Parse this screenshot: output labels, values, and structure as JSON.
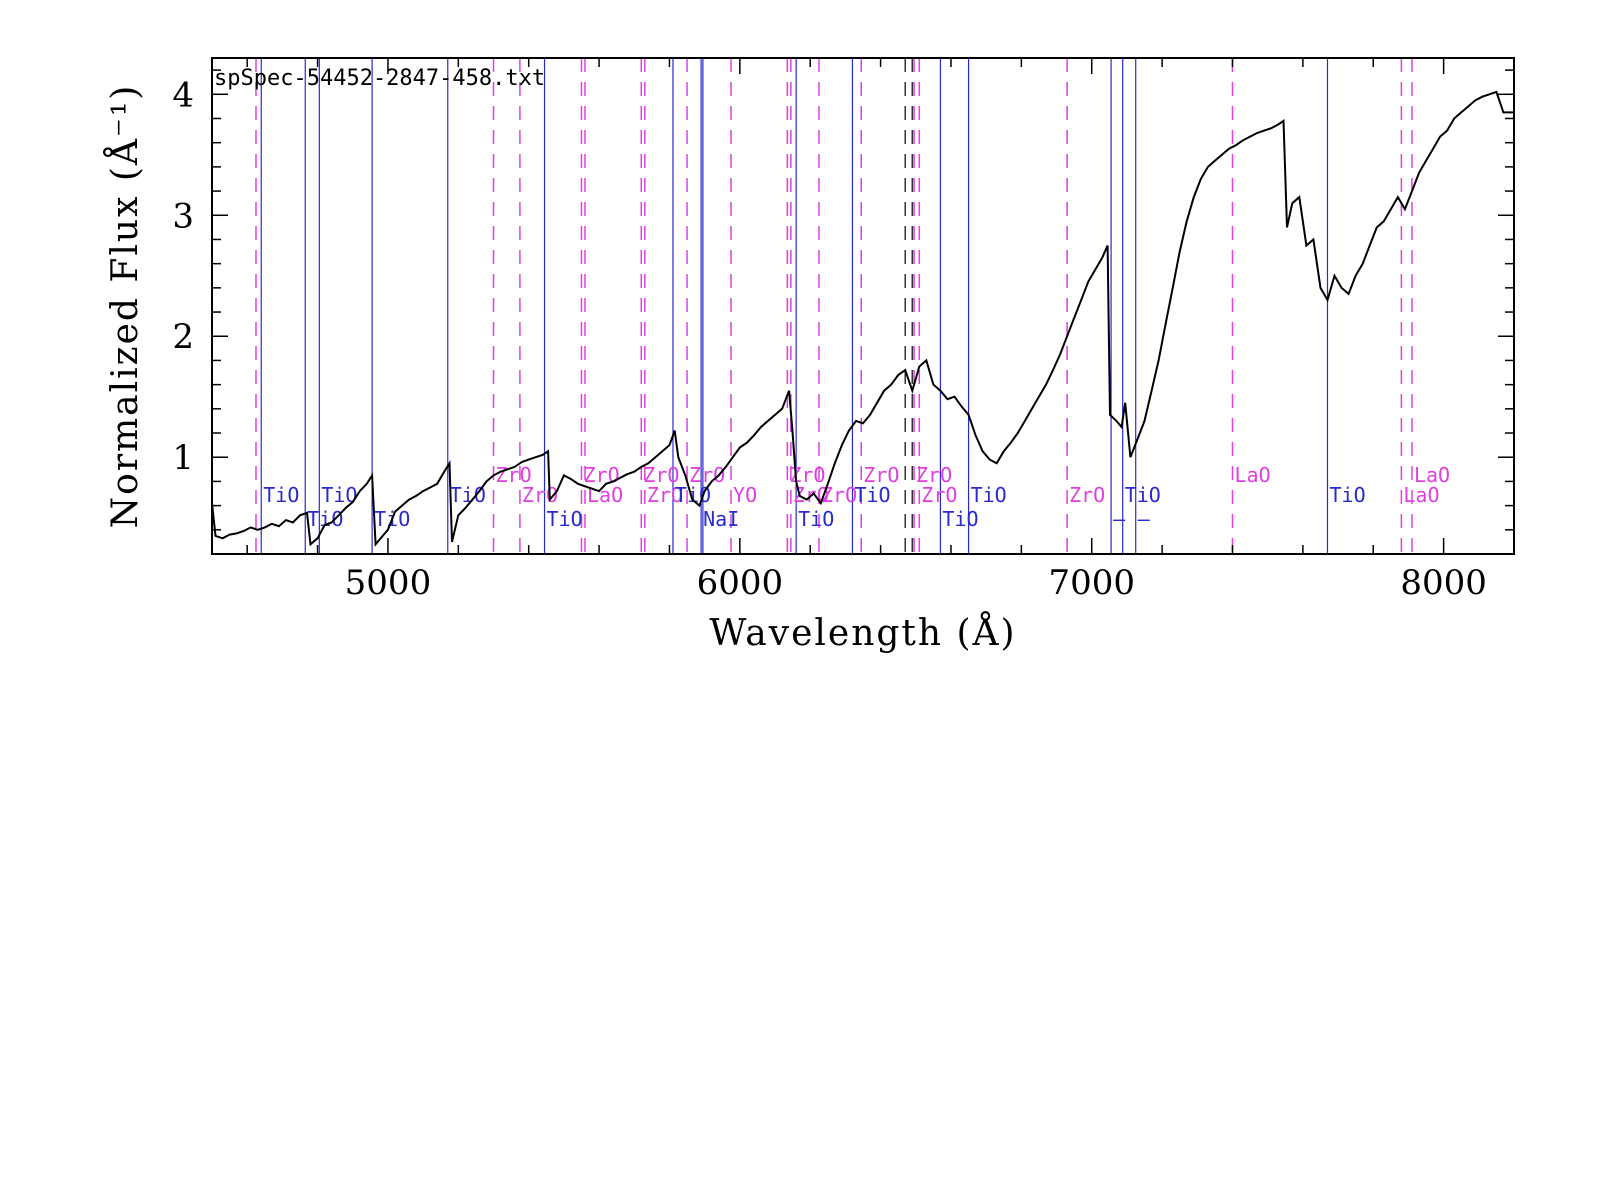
{
  "chart_data": {
    "type": "line",
    "file_label": "spSpec-54452-2847-458.txt",
    "xlabel": "Wavelength (Å)",
    "ylabel": "Normalized Flux  (Å⁻¹)",
    "xlim": [
      4500,
      8200
    ],
    "ylim": [
      0.2,
      4.3
    ],
    "xticks": [
      5000,
      6000,
      7000,
      8000
    ],
    "yticks": [
      1,
      2,
      3,
      4
    ],
    "grid": false,
    "colors": {
      "spectrum": "#000000",
      "blue_lines": "#2a2ad0",
      "magenta_lines": "#e040e0",
      "dark_dashed": "#333333"
    },
    "series": [
      {
        "values": [
          [
            4500,
            0.62
          ],
          [
            4510,
            0.35
          ],
          [
            4530,
            0.33
          ],
          [
            4550,
            0.36
          ],
          [
            4570,
            0.37
          ],
          [
            4590,
            0.39
          ],
          [
            4610,
            0.42
          ],
          [
            4630,
            0.4
          ],
          [
            4650,
            0.42
          ],
          [
            4670,
            0.45
          ],
          [
            4690,
            0.43
          ],
          [
            4710,
            0.48
          ],
          [
            4730,
            0.46
          ],
          [
            4750,
            0.52
          ],
          [
            4770,
            0.54
          ],
          [
            4780,
            0.28
          ],
          [
            4800,
            0.33
          ],
          [
            4820,
            0.44
          ],
          [
            4840,
            0.46
          ],
          [
            4860,
            0.52
          ],
          [
            4880,
            0.58
          ],
          [
            4900,
            0.63
          ],
          [
            4920,
            0.72
          ],
          [
            4940,
            0.78
          ],
          [
            4955,
            0.85
          ],
          [
            4965,
            0.28
          ],
          [
            4985,
            0.35
          ],
          [
            5000,
            0.4
          ],
          [
            5020,
            0.55
          ],
          [
            5040,
            0.6
          ],
          [
            5060,
            0.65
          ],
          [
            5080,
            0.68
          ],
          [
            5100,
            0.72
          ],
          [
            5120,
            0.75
          ],
          [
            5140,
            0.78
          ],
          [
            5160,
            0.88
          ],
          [
            5175,
            0.95
          ],
          [
            5182,
            0.3
          ],
          [
            5200,
            0.52
          ],
          [
            5220,
            0.58
          ],
          [
            5240,
            0.65
          ],
          [
            5260,
            0.72
          ],
          [
            5280,
            0.8
          ],
          [
            5300,
            0.85
          ],
          [
            5320,
            0.88
          ],
          [
            5340,
            0.9
          ],
          [
            5360,
            0.92
          ],
          [
            5380,
            0.96
          ],
          [
            5400,
            0.98
          ],
          [
            5420,
            1.0
          ],
          [
            5440,
            1.02
          ],
          [
            5455,
            1.05
          ],
          [
            5460,
            0.65
          ],
          [
            5480,
            0.72
          ],
          [
            5500,
            0.85
          ],
          [
            5520,
            0.82
          ],
          [
            5540,
            0.78
          ],
          [
            5560,
            0.76
          ],
          [
            5580,
            0.74
          ],
          [
            5600,
            0.72
          ],
          [
            5620,
            0.78
          ],
          [
            5640,
            0.8
          ],
          [
            5660,
            0.83
          ],
          [
            5680,
            0.86
          ],
          [
            5700,
            0.88
          ],
          [
            5720,
            0.92
          ],
          [
            5740,
            0.95
          ],
          [
            5760,
            1.0
          ],
          [
            5780,
            1.05
          ],
          [
            5800,
            1.1
          ],
          [
            5815,
            1.22
          ],
          [
            5825,
            1.0
          ],
          [
            5845,
            0.85
          ],
          [
            5865,
            0.65
          ],
          [
            5885,
            0.6
          ],
          [
            5900,
            0.72
          ],
          [
            5920,
            0.8
          ],
          [
            5940,
            0.85
          ],
          [
            5960,
            0.92
          ],
          [
            5980,
            1.0
          ],
          [
            6000,
            1.08
          ],
          [
            6020,
            1.12
          ],
          [
            6040,
            1.18
          ],
          [
            6060,
            1.25
          ],
          [
            6080,
            1.3
          ],
          [
            6100,
            1.35
          ],
          [
            6120,
            1.4
          ],
          [
            6140,
            1.55
          ],
          [
            6150,
            1.2
          ],
          [
            6160,
            0.8
          ],
          [
            6170,
            0.68
          ],
          [
            6190,
            0.65
          ],
          [
            6210,
            0.7
          ],
          [
            6230,
            0.62
          ],
          [
            6250,
            0.78
          ],
          [
            6270,
            0.95
          ],
          [
            6290,
            1.1
          ],
          [
            6310,
            1.22
          ],
          [
            6330,
            1.3
          ],
          [
            6350,
            1.28
          ],
          [
            6370,
            1.35
          ],
          [
            6390,
            1.45
          ],
          [
            6410,
            1.55
          ],
          [
            6430,
            1.6
          ],
          [
            6450,
            1.68
          ],
          [
            6470,
            1.72
          ],
          [
            6490,
            1.55
          ],
          [
            6510,
            1.75
          ],
          [
            6530,
            1.8
          ],
          [
            6550,
            1.6
          ],
          [
            6570,
            1.55
          ],
          [
            6590,
            1.48
          ],
          [
            6610,
            1.5
          ],
          [
            6630,
            1.42
          ],
          [
            6650,
            1.35
          ],
          [
            6670,
            1.18
          ],
          [
            6690,
            1.05
          ],
          [
            6710,
            0.98
          ],
          [
            6730,
            0.95
          ],
          [
            6750,
            1.05
          ],
          [
            6770,
            1.12
          ],
          [
            6790,
            1.2
          ],
          [
            6810,
            1.3
          ],
          [
            6830,
            1.4
          ],
          [
            6850,
            1.5
          ],
          [
            6870,
            1.6
          ],
          [
            6890,
            1.72
          ],
          [
            6910,
            1.85
          ],
          [
            6930,
            2.0
          ],
          [
            6950,
            2.15
          ],
          [
            6970,
            2.3
          ],
          [
            6990,
            2.45
          ],
          [
            7010,
            2.55
          ],
          [
            7030,
            2.65
          ],
          [
            7045,
            2.75
          ],
          [
            7052,
            1.35
          ],
          [
            7070,
            1.3
          ],
          [
            7085,
            1.25
          ],
          [
            7095,
            1.45
          ],
          [
            7110,
            1.0
          ],
          [
            7130,
            1.15
          ],
          [
            7150,
            1.3
          ],
          [
            7170,
            1.55
          ],
          [
            7190,
            1.8
          ],
          [
            7210,
            2.1
          ],
          [
            7230,
            2.4
          ],
          [
            7250,
            2.7
          ],
          [
            7270,
            2.95
          ],
          [
            7290,
            3.15
          ],
          [
            7310,
            3.3
          ],
          [
            7330,
            3.4
          ],
          [
            7350,
            3.45
          ],
          [
            7370,
            3.5
          ],
          [
            7390,
            3.55
          ],
          [
            7410,
            3.58
          ],
          [
            7430,
            3.62
          ],
          [
            7450,
            3.65
          ],
          [
            7470,
            3.68
          ],
          [
            7490,
            3.7
          ],
          [
            7510,
            3.72
          ],
          [
            7530,
            3.75
          ],
          [
            7545,
            3.78
          ],
          [
            7555,
            2.9
          ],
          [
            7570,
            3.1
          ],
          [
            7590,
            3.15
          ],
          [
            7610,
            2.75
          ],
          [
            7630,
            2.8
          ],
          [
            7650,
            2.4
          ],
          [
            7670,
            2.3
          ],
          [
            7690,
            2.5
          ],
          [
            7710,
            2.4
          ],
          [
            7730,
            2.35
          ],
          [
            7750,
            2.5
          ],
          [
            7770,
            2.6
          ],
          [
            7790,
            2.75
          ],
          [
            7810,
            2.9
          ],
          [
            7830,
            2.95
          ],
          [
            7850,
            3.05
          ],
          [
            7870,
            3.15
          ],
          [
            7890,
            3.05
          ],
          [
            7910,
            3.2
          ],
          [
            7930,
            3.35
          ],
          [
            7950,
            3.45
          ],
          [
            7970,
            3.55
          ],
          [
            7990,
            3.65
          ],
          [
            8010,
            3.7
          ],
          [
            8030,
            3.8
          ],
          [
            8050,
            3.85
          ],
          [
            8070,
            3.9
          ],
          [
            8090,
            3.95
          ],
          [
            8110,
            3.98
          ],
          [
            8130,
            4.0
          ],
          [
            8150,
            4.02
          ],
          [
            8170,
            3.85
          ],
          [
            8200,
            3.85
          ]
        ]
      }
    ],
    "blue_lines": [
      {
        "x": 4640,
        "label": "TiO",
        "row": 1
      },
      {
        "x": 4765,
        "label": "TiO",
        "row": 2
      },
      {
        "x": 4805,
        "label": "TiO",
        "row": 1
      },
      {
        "x": 4955,
        "label": "TiO",
        "row": 2
      },
      {
        "x": 5170,
        "label": "TiO",
        "row": 1
      },
      {
        "x": 5445,
        "label": "TiO",
        "row": 2
      },
      {
        "x": 5810,
        "label": "TiO",
        "row": 1
      },
      {
        "x": 5890,
        "label": "NaI",
        "row": 2
      },
      {
        "x": 5895,
        "label": "",
        "row": 0
      },
      {
        "x": 6160,
        "label": "TiO",
        "row": 2
      },
      {
        "x": 6320,
        "label": "TiO",
        "row": 1
      },
      {
        "x": 6570,
        "label": "TiO",
        "row": 2
      },
      {
        "x": 6650,
        "label": "TiO",
        "row": 1
      },
      {
        "x": 7055,
        "label": "–",
        "row": 2
      },
      {
        "x": 7088,
        "label": "TiO",
        "row": 1
      },
      {
        "x": 7125,
        "label": "–",
        "row": 2
      },
      {
        "x": 7670,
        "label": "TiO",
        "row": 1
      }
    ],
    "magenta_lines": [
      {
        "x": 4625,
        "label": "",
        "row": 0
      },
      {
        "x": 5300,
        "label": "ZrO",
        "row": 0
      },
      {
        "x": 5375,
        "label": "ZrO",
        "row": 1
      },
      {
        "x": 5550,
        "label": "ZrO",
        "row": 0
      },
      {
        "x": 5560,
        "label": "LaO",
        "row": 1
      },
      {
        "x": 5720,
        "label": "ZrO",
        "row": 0
      },
      {
        "x": 5730,
        "label": "ZrO",
        "row": 1
      },
      {
        "x": 5850,
        "label": "ZrO",
        "row": 0
      },
      {
        "x": 5975,
        "label": "YO",
        "row": 1
      },
      {
        "x": 6135,
        "label": "ZrO",
        "row": 0
      },
      {
        "x": 6145,
        "label": "ZrO",
        "row": 1
      },
      {
        "x": 6225,
        "label": "ZrO",
        "row": 1
      },
      {
        "x": 6345,
        "label": "ZrO",
        "row": 0
      },
      {
        "x": 6495,
        "label": "ZrO",
        "row": 0
      },
      {
        "x": 6510,
        "label": "ZrO",
        "row": 1
      },
      {
        "x": 6930,
        "label": "ZrO",
        "row": 1
      },
      {
        "x": 7400,
        "label": "LaO",
        "row": 0
      },
      {
        "x": 7880,
        "label": "LaO",
        "row": 1
      },
      {
        "x": 7910,
        "label": "LaO",
        "row": 0
      }
    ],
    "dark_dashed_lines": [
      6470,
      6490
    ]
  }
}
